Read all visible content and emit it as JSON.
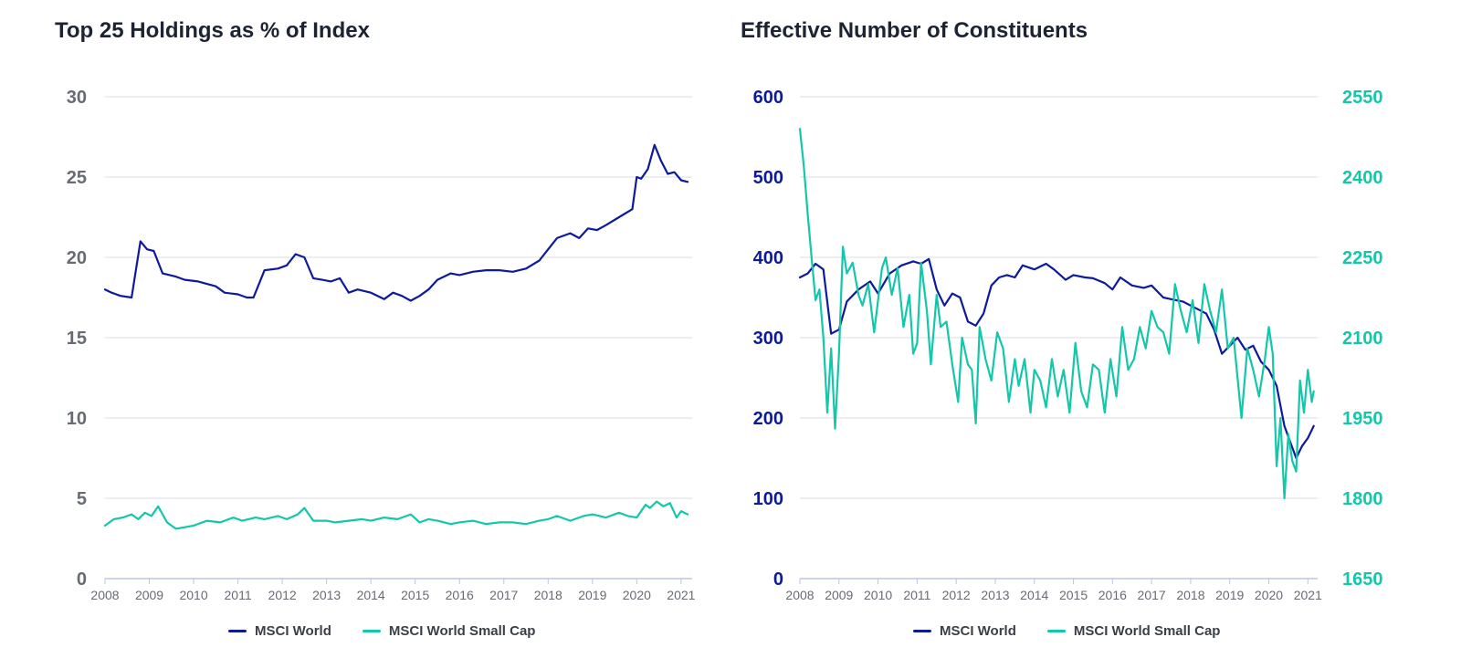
{
  "colors": {
    "world": "#0e1a9c",
    "small_cap": "#12c7aa",
    "grid": "#d9dce2",
    "left_axis_text": "#676b74",
    "axis_line": "#b9c7e0"
  },
  "chart_data": [
    {
      "type": "line",
      "title": "Top 25 Holdings as % of Index",
      "xlabel": "",
      "ylabel": "",
      "xlim": [
        2008,
        2021.25
      ],
      "ylim": [
        0,
        30
      ],
      "yticks": [
        "30",
        "25",
        "20",
        "15",
        "10",
        "5",
        "0"
      ],
      "xticks": [
        "2008",
        "2009",
        "2010",
        "2011",
        "2012",
        "2013",
        "2014",
        "2015",
        "2016",
        "2017",
        "2018",
        "2019",
        "2020",
        "2021"
      ],
      "grid": true,
      "legend": "bottom",
      "legend_entries": [
        "MSCI World",
        "MSCI World Small Cap"
      ],
      "series": [
        {
          "name": "MSCI World",
          "color": "#0e1a9c",
          "x": [
            2008.0,
            2008.15,
            2008.35,
            2008.6,
            2008.8,
            2008.95,
            2009.1,
            2009.3,
            2009.6,
            2009.8,
            2010.1,
            2010.5,
            2010.7,
            2011.0,
            2011.2,
            2011.35,
            2011.6,
            2011.9,
            2012.1,
            2012.3,
            2012.5,
            2012.7,
            2012.9,
            2013.1,
            2013.3,
            2013.5,
            2013.7,
            2014.0,
            2014.3,
            2014.5,
            2014.7,
            2014.9,
            2015.1,
            2015.3,
            2015.5,
            2015.8,
            2016.0,
            2016.3,
            2016.6,
            2016.9,
            2017.2,
            2017.5,
            2017.8,
            2018.0,
            2018.2,
            2018.5,
            2018.7,
            2018.9,
            2019.1,
            2019.3,
            2019.6,
            2019.9,
            2020.0,
            2020.1,
            2020.25,
            2020.4,
            2020.55,
            2020.7,
            2020.85,
            2021.0,
            2021.15
          ],
          "y": [
            18.0,
            17.8,
            17.6,
            17.5,
            21.0,
            20.5,
            20.4,
            19.0,
            18.8,
            18.6,
            18.5,
            18.2,
            17.8,
            17.7,
            17.5,
            17.5,
            19.2,
            19.3,
            19.5,
            20.2,
            20.0,
            18.7,
            18.6,
            18.5,
            18.7,
            17.8,
            18.0,
            17.8,
            17.4,
            17.8,
            17.6,
            17.3,
            17.6,
            18.0,
            18.6,
            19.0,
            18.9,
            19.1,
            19.2,
            19.2,
            19.1,
            19.3,
            19.8,
            20.5,
            21.2,
            21.5,
            21.2,
            21.8,
            21.7,
            22.0,
            22.5,
            23.0,
            25.0,
            24.9,
            25.5,
            27.0,
            26.0,
            25.2,
            25.3,
            24.8,
            24.7
          ]
        },
        {
          "name": "MSCI World Small Cap",
          "color": "#12c7aa",
          "x": [
            2008.0,
            2008.2,
            2008.4,
            2008.6,
            2008.75,
            2008.9,
            2009.05,
            2009.2,
            2009.4,
            2009.6,
            2009.8,
            2010.0,
            2010.3,
            2010.6,
            2010.9,
            2011.1,
            2011.4,
            2011.6,
            2011.9,
            2012.1,
            2012.35,
            2012.5,
            2012.7,
            2013.0,
            2013.2,
            2013.5,
            2013.8,
            2014.0,
            2014.3,
            2014.6,
            2014.9,
            2015.1,
            2015.3,
            2015.5,
            2015.8,
            2016.0,
            2016.3,
            2016.6,
            2016.9,
            2017.2,
            2017.5,
            2017.8,
            2018.0,
            2018.2,
            2018.5,
            2018.8,
            2019.0,
            2019.3,
            2019.6,
            2019.8,
            2020.0,
            2020.2,
            2020.3,
            2020.45,
            2020.6,
            2020.75,
            2020.9,
            2021.0,
            2021.15
          ],
          "y": [
            3.3,
            3.7,
            3.8,
            4.0,
            3.7,
            4.1,
            3.9,
            4.5,
            3.5,
            3.1,
            3.2,
            3.3,
            3.6,
            3.5,
            3.8,
            3.6,
            3.8,
            3.7,
            3.9,
            3.7,
            4.0,
            4.4,
            3.6,
            3.6,
            3.5,
            3.6,
            3.7,
            3.6,
            3.8,
            3.7,
            4.0,
            3.5,
            3.7,
            3.6,
            3.4,
            3.5,
            3.6,
            3.4,
            3.5,
            3.5,
            3.4,
            3.6,
            3.7,
            3.9,
            3.6,
            3.9,
            4.0,
            3.8,
            4.1,
            3.9,
            3.8,
            4.6,
            4.4,
            4.8,
            4.5,
            4.7,
            3.8,
            4.2,
            4.0
          ]
        }
      ]
    },
    {
      "type": "line",
      "title": "Effective Number of Constituents",
      "xlabel": "",
      "ylabel": "",
      "xlim": [
        2008,
        2021.25
      ],
      "ylim": [
        0,
        600
      ],
      "ylim_right": [
        1650,
        2550
      ],
      "yticks": [
        "600",
        "500",
        "400",
        "300",
        "200",
        "100",
        "0"
      ],
      "yticks_right": [
        "2550",
        "2400",
        "2250",
        "2100",
        "1950",
        "1800",
        "1650"
      ],
      "xticks": [
        "2008",
        "2009",
        "2010",
        "2011",
        "2012",
        "2013",
        "2014",
        "2015",
        "2016",
        "2017",
        "2018",
        "2019",
        "2020",
        "2021"
      ],
      "grid": true,
      "legend": "bottom",
      "legend_entries": [
        "MSCI World",
        "MSCI World Small Cap"
      ],
      "series": [
        {
          "name": "MSCI World",
          "axis": "left",
          "color": "#0e1a9c",
          "x": [
            2008.0,
            2008.2,
            2008.4,
            2008.6,
            2008.8,
            2009.0,
            2009.2,
            2009.5,
            2009.8,
            2010.0,
            2010.3,
            2010.6,
            2010.9,
            2011.1,
            2011.3,
            2011.5,
            2011.7,
            2011.9,
            2012.1,
            2012.3,
            2012.5,
            2012.7,
            2012.9,
            2013.1,
            2013.3,
            2013.5,
            2013.7,
            2014.0,
            2014.3,
            2014.5,
            2014.8,
            2015.0,
            2015.3,
            2015.5,
            2015.8,
            2016.0,
            2016.2,
            2016.5,
            2016.8,
            2017.0,
            2017.3,
            2017.5,
            2017.8,
            2018.0,
            2018.2,
            2018.4,
            2018.6,
            2018.8,
            2019.0,
            2019.2,
            2019.4,
            2019.6,
            2019.8,
            2020.0,
            2020.2,
            2020.4,
            2020.55,
            2020.7,
            2020.85,
            2021.0,
            2021.15
          ],
          "y": [
            375,
            380,
            392,
            385,
            305,
            310,
            345,
            360,
            370,
            355,
            380,
            390,
            395,
            392,
            398,
            360,
            340,
            355,
            350,
            320,
            315,
            330,
            365,
            375,
            378,
            375,
            390,
            385,
            392,
            385,
            372,
            378,
            375,
            374,
            368,
            360,
            375,
            365,
            362,
            365,
            350,
            348,
            345,
            340,
            335,
            330,
            310,
            280,
            290,
            300,
            285,
            290,
            270,
            260,
            240,
            190,
            170,
            150,
            165,
            175,
            190
          ]
        },
        {
          "name": "MSCI World Small Cap",
          "axis": "right",
          "color": "#12c7aa",
          "x": [
            2008.0,
            2008.1,
            2008.2,
            2008.3,
            2008.4,
            2008.5,
            2008.6,
            2008.7,
            2008.8,
            2008.9,
            2009.0,
            2009.1,
            2009.2,
            2009.35,
            2009.5,
            2009.6,
            2009.75,
            2009.9,
            2010.1,
            2010.2,
            2010.35,
            2010.5,
            2010.65,
            2010.8,
            2010.9,
            2011.0,
            2011.1,
            2011.25,
            2011.35,
            2011.5,
            2011.6,
            2011.75,
            2011.9,
            2012.05,
            2012.15,
            2012.3,
            2012.4,
            2012.5,
            2012.6,
            2012.75,
            2012.9,
            2013.05,
            2013.2,
            2013.35,
            2013.5,
            2013.6,
            2013.75,
            2013.9,
            2014.0,
            2014.15,
            2014.3,
            2014.45,
            2014.6,
            2014.75,
            2014.9,
            2015.05,
            2015.2,
            2015.35,
            2015.5,
            2015.65,
            2015.8,
            2015.95,
            2016.1,
            2016.25,
            2016.4,
            2016.55,
            2016.7,
            2016.85,
            2017.0,
            2017.15,
            2017.3,
            2017.45,
            2017.6,
            2017.75,
            2017.9,
            2018.05,
            2018.2,
            2018.35,
            2018.5,
            2018.65,
            2018.8,
            2018.95,
            2019.1,
            2019.3,
            2019.45,
            2019.6,
            2019.75,
            2019.9,
            2020.0,
            2020.1,
            2020.2,
            2020.3,
            2020.4,
            2020.5,
            2020.6,
            2020.7,
            2020.8,
            2020.9,
            2021.0,
            2021.1,
            2021.15
          ],
          "y": [
            2490,
            2420,
            2330,
            2250,
            2170,
            2190,
            2100,
            1960,
            2080,
            1930,
            2070,
            2270,
            2220,
            2240,
            2180,
            2160,
            2200,
            2110,
            2230,
            2250,
            2180,
            2230,
            2120,
            2180,
            2070,
            2090,
            2240,
            2150,
            2050,
            2180,
            2120,
            2130,
            2050,
            1980,
            2100,
            2050,
            2040,
            1940,
            2120,
            2060,
            2020,
            2110,
            2080,
            1980,
            2060,
            2010,
            2060,
            1960,
            2040,
            2020,
            1970,
            2060,
            1990,
            2040,
            1960,
            2090,
            2000,
            1970,
            2050,
            2040,
            1960,
            2060,
            1990,
            2120,
            2040,
            2060,
            2120,
            2080,
            2150,
            2120,
            2110,
            2070,
            2200,
            2150,
            2110,
            2170,
            2090,
            2200,
            2150,
            2110,
            2190,
            2080,
            2100,
            1950,
            2080,
            2040,
            1990,
            2060,
            2120,
            2070,
            1860,
            1950,
            1800,
            1920,
            1870,
            1850,
            2020,
            1960,
            2040,
            1980,
            2000
          ]
        }
      ]
    }
  ]
}
